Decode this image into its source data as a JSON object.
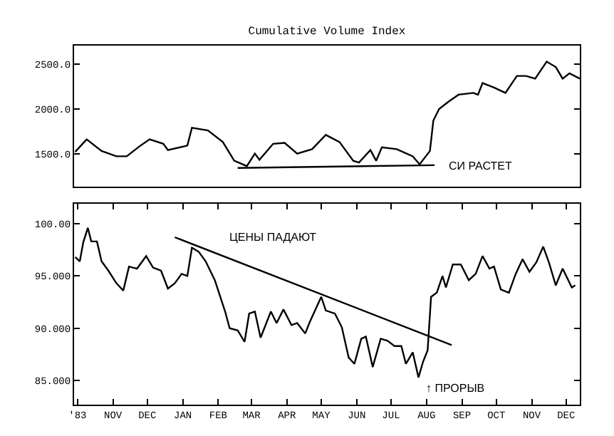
{
  "chart_data": [
    {
      "type": "line",
      "title": "Cumulative Volume Index",
      "xlim": [
        "1983-09-28",
        "1984-12-13"
      ],
      "ylim": [
        1130,
        2710
      ],
      "yticks": [
        {
          "value": 1500,
          "label": "1500.0"
        },
        {
          "value": 2000,
          "label": "2000.0"
        },
        {
          "value": 2500,
          "label": "2500.0"
        }
      ],
      "tick_labels": "y",
      "grid": false,
      "series": [
        {
          "color": "#000000",
          "x": [
            "1983-09-29",
            "1983-10-09",
            "1983-10-22",
            "1983-11-04",
            "1983-11-13",
            "1983-11-24",
            "1983-12-03",
            "1983-12-15",
            "1983-12-19",
            "1984-01-05",
            "1984-01-09",
            "1984-01-23",
            "1984-02-05",
            "1984-02-15",
            "1984-02-26",
            "1984-03-04",
            "1984-03-08",
            "1984-03-20",
            "1984-03-30",
            "1984-04-10",
            "1984-04-23",
            "1984-05-05",
            "1984-05-17",
            "1984-05-29",
            "1984-06-03",
            "1984-06-13",
            "1984-06-18",
            "1984-06-23",
            "1984-07-06",
            "1984-07-20",
            "1984-07-26",
            "1984-08-04",
            "1984-08-07",
            "1984-08-12",
            "1984-08-20",
            "1984-08-29",
            "1984-09-11",
            "1984-09-15",
            "1984-09-19",
            "1984-09-29",
            "1984-10-09",
            "1984-10-19",
            "1984-10-27",
            "1984-11-04",
            "1984-11-14",
            "1984-11-22",
            "1984-11-28",
            "1984-12-04",
            "1984-12-13"
          ],
          "values": [
            1520,
            1660,
            1530,
            1470,
            1470,
            1580,
            1660,
            1610,
            1540,
            1590,
            1790,
            1760,
            1630,
            1420,
            1360,
            1500,
            1430,
            1610,
            1620,
            1500,
            1550,
            1710,
            1630,
            1420,
            1400,
            1540,
            1420,
            1570,
            1550,
            1470,
            1380,
            1530,
            1870,
            2000,
            2080,
            2160,
            2180,
            2160,
            2290,
            2240,
            2180,
            2370,
            2370,
            2340,
            2530,
            2470,
            2340,
            2400,
            2340
          ]
        },
        {
          "color": "#000000",
          "x": [
            "1984-02-18",
            "1984-08-08"
          ],
          "values": [
            1340,
            1370
          ]
        }
      ],
      "annotations": [
        "СИ РАСТЕТ"
      ]
    },
    {
      "type": "line",
      "xlim": [
        "1983-09-28",
        "1984-12-13"
      ],
      "xticks": [
        {
          "value": "1983-10-01",
          "label": "'83"
        },
        {
          "value": "1983-11-01",
          "label": "NOV"
        },
        {
          "value": "1983-12-01",
          "label": "DEC"
        },
        {
          "value": "1984-01-01",
          "label": "JAN"
        },
        {
          "value": "1984-02-01",
          "label": "FEB"
        },
        {
          "value": "1984-03-01",
          "label": "MAR"
        },
        {
          "value": "1984-04-01",
          "label": "APR"
        },
        {
          "value": "1984-05-01",
          "label": "MAY"
        },
        {
          "value": "1984-06-01",
          "label": "JUN"
        },
        {
          "value": "1984-07-01",
          "label": "JUL"
        },
        {
          "value": "1984-08-01",
          "label": "AUG"
        },
        {
          "value": "1984-09-01",
          "label": "SEP"
        },
        {
          "value": "1984-10-01",
          "label": "OCT"
        },
        {
          "value": "1984-11-01",
          "label": "NOV"
        },
        {
          "value": "1984-12-01",
          "label": "DEC"
        }
      ],
      "ylim": [
        82.7,
        101.9
      ],
      "yticks": [
        {
          "value": 85,
          "label": "85.000"
        },
        {
          "value": 90,
          "label": "90.000"
        },
        {
          "value": 95,
          "label": "95.000"
        },
        {
          "value": 100,
          "label": "100.00"
        }
      ],
      "grid": false,
      "series": [
        {
          "color": "#000000",
          "x": [
            "1983-09-29",
            "1983-10-03",
            "1983-10-06",
            "1983-10-10",
            "1983-10-13",
            "1983-10-18",
            "1983-10-22",
            "1983-10-28",
            "1983-11-04",
            "1983-11-10",
            "1983-11-15",
            "1983-11-22",
            "1983-11-30",
            "1983-12-06",
            "1983-12-13",
            "1983-12-19",
            "1983-12-25",
            "1983-12-31",
            "1984-01-05",
            "1984-01-09",
            "1984-01-15",
            "1984-01-21",
            "1984-01-29",
            "1984-02-07",
            "1984-02-11",
            "1984-02-18",
            "1984-02-24",
            "1984-02-28",
            "1984-03-04",
            "1984-03-09",
            "1984-03-18",
            "1984-03-23",
            "1984-03-29",
            "1984-04-05",
            "1984-04-10",
            "1984-04-17",
            "1984-04-21",
            "1984-05-01",
            "1984-05-05",
            "1984-05-13",
            "1984-05-19",
            "1984-05-25",
            "1984-05-30",
            "1984-06-05",
            "1984-06-09",
            "1984-06-15",
            "1984-06-22",
            "1984-06-28",
            "1984-07-04",
            "1984-07-10",
            "1984-07-14",
            "1984-07-20",
            "1984-07-25",
            "1984-07-29",
            "1984-08-02",
            "1984-08-05",
            "1984-08-10",
            "1984-08-15",
            "1984-08-18",
            "1984-08-24",
            "1984-08-31",
            "1984-09-07",
            "1984-09-13",
            "1984-09-19",
            "1984-09-25",
            "1984-09-29",
            "1984-10-05",
            "1984-10-12",
            "1984-10-18",
            "1984-10-24",
            "1984-10-30",
            "1984-11-05",
            "1984-11-11",
            "1984-11-16",
            "1984-11-22",
            "1984-11-28",
            "1984-12-06",
            "1984-12-09"
          ],
          "values": [
            96.8,
            96.4,
            98.2,
            99.6,
            98.3,
            98.3,
            96.4,
            95.5,
            94.3,
            93.6,
            95.9,
            95.7,
            96.9,
            95.8,
            95.5,
            93.8,
            94.3,
            95.2,
            95.0,
            97.7,
            97.3,
            96.4,
            94.6,
            91.6,
            90.0,
            89.8,
            88.7,
            91.4,
            91.6,
            89.1,
            91.6,
            90.5,
            91.8,
            90.3,
            90.5,
            89.5,
            90.6,
            93.0,
            91.7,
            91.4,
            90.1,
            87.2,
            86.6,
            89.0,
            89.2,
            86.3,
            89.0,
            88.8,
            88.3,
            88.3,
            86.6,
            87.7,
            85.3,
            86.8,
            87.9,
            93.0,
            93.4,
            95.0,
            93.9,
            96.1,
            96.1,
            94.6,
            95.2,
            96.9,
            95.7,
            95.9,
            93.7,
            93.4,
            95.2,
            96.6,
            95.4,
            96.3,
            97.8,
            96.3,
            94.1,
            95.7,
            93.9,
            94.1
          ]
        },
        {
          "color": "#000000",
          "x": [
            "1983-12-25",
            "1984-08-23"
          ],
          "values": [
            98.7,
            88.4
          ]
        }
      ],
      "annotations": [
        "ЦЕНЫ ПАДАЮТ",
        "↑ ПРОРЫВ"
      ]
    }
  ]
}
